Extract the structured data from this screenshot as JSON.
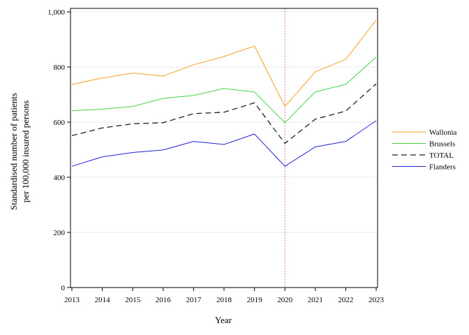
{
  "chart_data": {
    "type": "line",
    "x": [
      2013,
      2014,
      2015,
      2016,
      2017,
      2018,
      2019,
      2020,
      2021,
      2022,
      2023
    ],
    "x_tick_labels": [
      "2013",
      "2014",
      "2015",
      "2016",
      "2017",
      "2018",
      "2019",
      "2020",
      "2021",
      "2022",
      "2023"
    ],
    "xlabel": "Year",
    "ylabel_lines": [
      "Standardised number of patients",
      "per 100,000 insured persons"
    ],
    "ylim": [
      0,
      1000
    ],
    "y_ticks": [
      0,
      200,
      400,
      600,
      800,
      1000
    ],
    "y_tick_labels": [
      "0",
      "200",
      "400",
      "600",
      "800",
      "1,000"
    ],
    "grid": "horizontal",
    "reference_line_x": 2020,
    "legend_position": "right",
    "series": [
      {
        "name": "Wallonia",
        "color": "#ff9b21",
        "dash": "solid",
        "values": [
          737,
          760,
          778,
          767,
          808,
          838,
          876,
          657,
          782,
          828,
          970
        ]
      },
      {
        "name": "Brussels",
        "color": "#41d441",
        "dash": "solid",
        "values": [
          641,
          647,
          657,
          686,
          697,
          722,
          709,
          598,
          710,
          737,
          836
        ]
      },
      {
        "name": "TOTAL",
        "color": "#222222",
        "dash": "dashed",
        "values": [
          551,
          579,
          594,
          598,
          631,
          636,
          670,
          523,
          611,
          640,
          739
        ]
      },
      {
        "name": "Flanders",
        "color": "#2121e0",
        "dash": "solid",
        "values": [
          440,
          474,
          490,
          499,
          530,
          519,
          557,
          440,
          510,
          530,
          605
        ]
      }
    ],
    "colors": {
      "reference_line": "#e0408a",
      "grid": "#e8e8e8",
      "axis": "#000000"
    }
  }
}
